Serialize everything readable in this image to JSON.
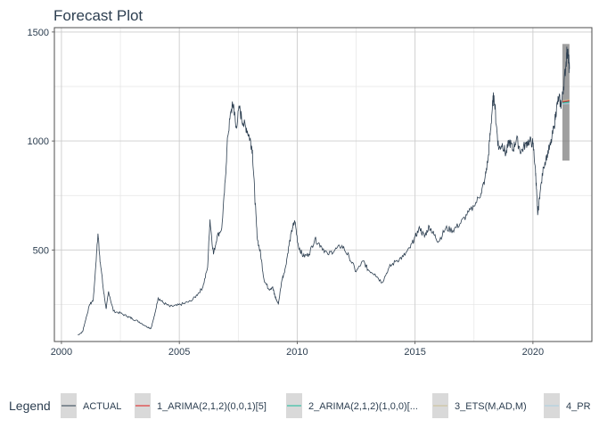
{
  "chart_data": {
    "type": "line",
    "title": "Forecast Plot",
    "xlabel": "",
    "ylabel": "",
    "xlim": [
      1999.7,
      2022.5
    ],
    "ylim": [
      80,
      1520
    ],
    "x_ticks": [
      2000,
      2005,
      2010,
      2015,
      2020
    ],
    "x_tick_labels": [
      "2000",
      "2005",
      "2010",
      "2015",
      "2020"
    ],
    "y_ticks": [
      500,
      1000,
      1500
    ],
    "y_tick_labels": [
      "500",
      "1000",
      "1500"
    ],
    "grid": true,
    "legend": {
      "position": "bottom",
      "title": "Legend",
      "entries": [
        {
          "label": "ACTUAL",
          "color": "#2c3e50"
        },
        {
          "label": "1_ARIMA(2,1,2)(0,0,1)[5]",
          "color": "#e31a1c"
        },
        {
          "label": "2_ARIMA(2,1,2)(1,0,0)[...",
          "color": "#18bc9c"
        },
        {
          "label": "3_ETS(M,AD,M)",
          "color": "#ccbe93"
        },
        {
          "label": "4_PR",
          "color": "#a6cee3"
        }
      ]
    },
    "series": [
      {
        "name": "ACTUAL",
        "color": "#2c3e50",
        "points": [
          [
            2000.7,
            110
          ],
          [
            2000.9,
            125
          ],
          [
            2001.0,
            170
          ],
          [
            2001.2,
            250
          ],
          [
            2001.35,
            270
          ],
          [
            2001.45,
            420
          ],
          [
            2001.55,
            575
          ],
          [
            2001.65,
            440
          ],
          [
            2001.8,
            300
          ],
          [
            2001.9,
            230
          ],
          [
            2002.0,
            310
          ],
          [
            2002.2,
            220
          ],
          [
            2002.5,
            210
          ],
          [
            2002.8,
            195
          ],
          [
            2003.0,
            185
          ],
          [
            2003.3,
            170
          ],
          [
            2003.6,
            150
          ],
          [
            2003.8,
            140
          ],
          [
            2003.95,
            200
          ],
          [
            2004.1,
            280
          ],
          [
            2004.3,
            260
          ],
          [
            2004.6,
            240
          ],
          [
            2004.9,
            245
          ],
          [
            2005.2,
            255
          ],
          [
            2005.5,
            265
          ],
          [
            2005.8,
            300
          ],
          [
            2006.0,
            330
          ],
          [
            2006.2,
            420
          ],
          [
            2006.3,
            640
          ],
          [
            2006.45,
            480
          ],
          [
            2006.6,
            560
          ],
          [
            2006.8,
            600
          ],
          [
            2006.95,
            820
          ],
          [
            2007.05,
            1020
          ],
          [
            2007.2,
            1140
          ],
          [
            2007.3,
            1170
          ],
          [
            2007.4,
            1060
          ],
          [
            2007.55,
            1150
          ],
          [
            2007.7,
            1080
          ],
          [
            2007.85,
            1060
          ],
          [
            2008.0,
            1010
          ],
          [
            2008.1,
            960
          ],
          [
            2008.2,
            750
          ],
          [
            2008.3,
            560
          ],
          [
            2008.45,
            480
          ],
          [
            2008.6,
            360
          ],
          [
            2008.8,
            320
          ],
          [
            2008.95,
            330
          ],
          [
            2009.05,
            290
          ],
          [
            2009.2,
            250
          ],
          [
            2009.35,
            360
          ],
          [
            2009.5,
            420
          ],
          [
            2009.65,
            520
          ],
          [
            2009.8,
            600
          ],
          [
            2009.9,
            630
          ],
          [
            2010.05,
            520
          ],
          [
            2010.25,
            470
          ],
          [
            2010.5,
            480
          ],
          [
            2010.75,
            550
          ],
          [
            2011.0,
            520
          ],
          [
            2011.3,
            480
          ],
          [
            2011.6,
            500
          ],
          [
            2011.9,
            520
          ],
          [
            2012.2,
            470
          ],
          [
            2012.5,
            400
          ],
          [
            2012.8,
            450
          ],
          [
            2013.0,
            410
          ],
          [
            2013.3,
            390
          ],
          [
            2013.6,
            350
          ],
          [
            2013.9,
            420
          ],
          [
            2014.2,
            450
          ],
          [
            2014.5,
            470
          ],
          [
            2014.8,
            510
          ],
          [
            2015.0,
            560
          ],
          [
            2015.2,
            600
          ],
          [
            2015.4,
            560
          ],
          [
            2015.6,
            610
          ],
          [
            2015.8,
            570
          ],
          [
            2016.0,
            540
          ],
          [
            2016.3,
            600
          ],
          [
            2016.6,
            590
          ],
          [
            2016.9,
            620
          ],
          [
            2017.2,
            660
          ],
          [
            2017.5,
            700
          ],
          [
            2017.8,
            760
          ],
          [
            2017.95,
            820
          ],
          [
            2018.1,
            920
          ],
          [
            2018.2,
            1050
          ],
          [
            2018.3,
            1180
          ],
          [
            2018.35,
            1210
          ],
          [
            2018.45,
            1070
          ],
          [
            2018.55,
            960
          ],
          [
            2018.7,
            990
          ],
          [
            2018.85,
            940
          ],
          [
            2019.0,
            1000
          ],
          [
            2019.15,
            960
          ],
          [
            2019.3,
            1010
          ],
          [
            2019.5,
            950
          ],
          [
            2019.7,
            990
          ],
          [
            2019.85,
            1000
          ],
          [
            2020.0,
            990
          ],
          [
            2020.1,
            880
          ],
          [
            2020.15,
            780
          ],
          [
            2020.2,
            660
          ],
          [
            2020.3,
            760
          ],
          [
            2020.45,
            880
          ],
          [
            2020.6,
            940
          ],
          [
            2020.75,
            980
          ],
          [
            2020.9,
            1070
          ],
          [
            2021.0,
            1150
          ],
          [
            2021.1,
            1200
          ],
          [
            2021.2,
            1160
          ],
          [
            2021.3,
            1250
          ],
          [
            2021.4,
            1350
          ],
          [
            2021.45,
            1420
          ],
          [
            2021.5,
            1390
          ],
          [
            2021.55,
            1330
          ]
        ]
      },
      {
        "name": "1_ARIMA(2,1,2)(0,0,1)[5]",
        "color": "#e31a1c",
        "points": [
          [
            2021.25,
            1180
          ],
          [
            2021.55,
            1185
          ]
        ]
      },
      {
        "name": "2_ARIMA(2,1,2)(1,0,0)[...",
        "color": "#18bc9c",
        "points": [
          [
            2021.25,
            1175
          ],
          [
            2021.55,
            1180
          ]
        ]
      },
      {
        "name": "3_ETS(M,AD,M)",
        "color": "#ccbe93",
        "points": [
          [
            2021.25,
            1185
          ],
          [
            2021.55,
            1190
          ]
        ]
      },
      {
        "name": "4_PR",
        "color": "#a6cee3",
        "points": [
          [
            2021.25,
            1170
          ],
          [
            2021.55,
            1172
          ]
        ]
      }
    ],
    "confidence_band": {
      "x": [
        2021.25,
        2021.55
      ],
      "low": 910,
      "high": 1445,
      "color": "#7f7f7f"
    }
  }
}
